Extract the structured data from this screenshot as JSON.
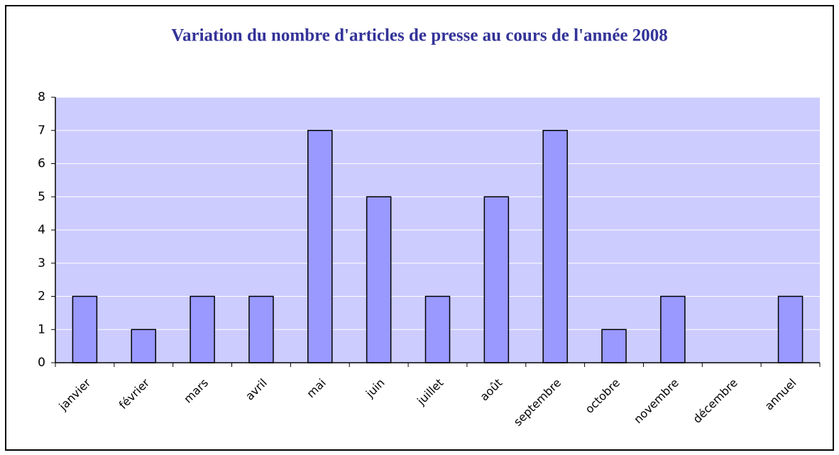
{
  "chart_data": {
    "type": "bar",
    "title": "Variation du nombre d'articles de presse au cours de l'année 2008",
    "categories": [
      "janvier",
      "février",
      "mars",
      "avril",
      "mai",
      "juin",
      "juillet",
      "août",
      "septembre",
      "octobre",
      "novembre",
      "décembre",
      "annuel"
    ],
    "values": [
      2,
      1,
      2,
      2,
      7,
      5,
      2,
      5,
      7,
      1,
      2,
      0,
      2
    ],
    "color": "#9999ff",
    "ylim": [
      0,
      8
    ],
    "yticks": [
      0,
      1,
      2,
      3,
      4,
      5,
      6,
      7,
      8
    ],
    "grid": true
  }
}
